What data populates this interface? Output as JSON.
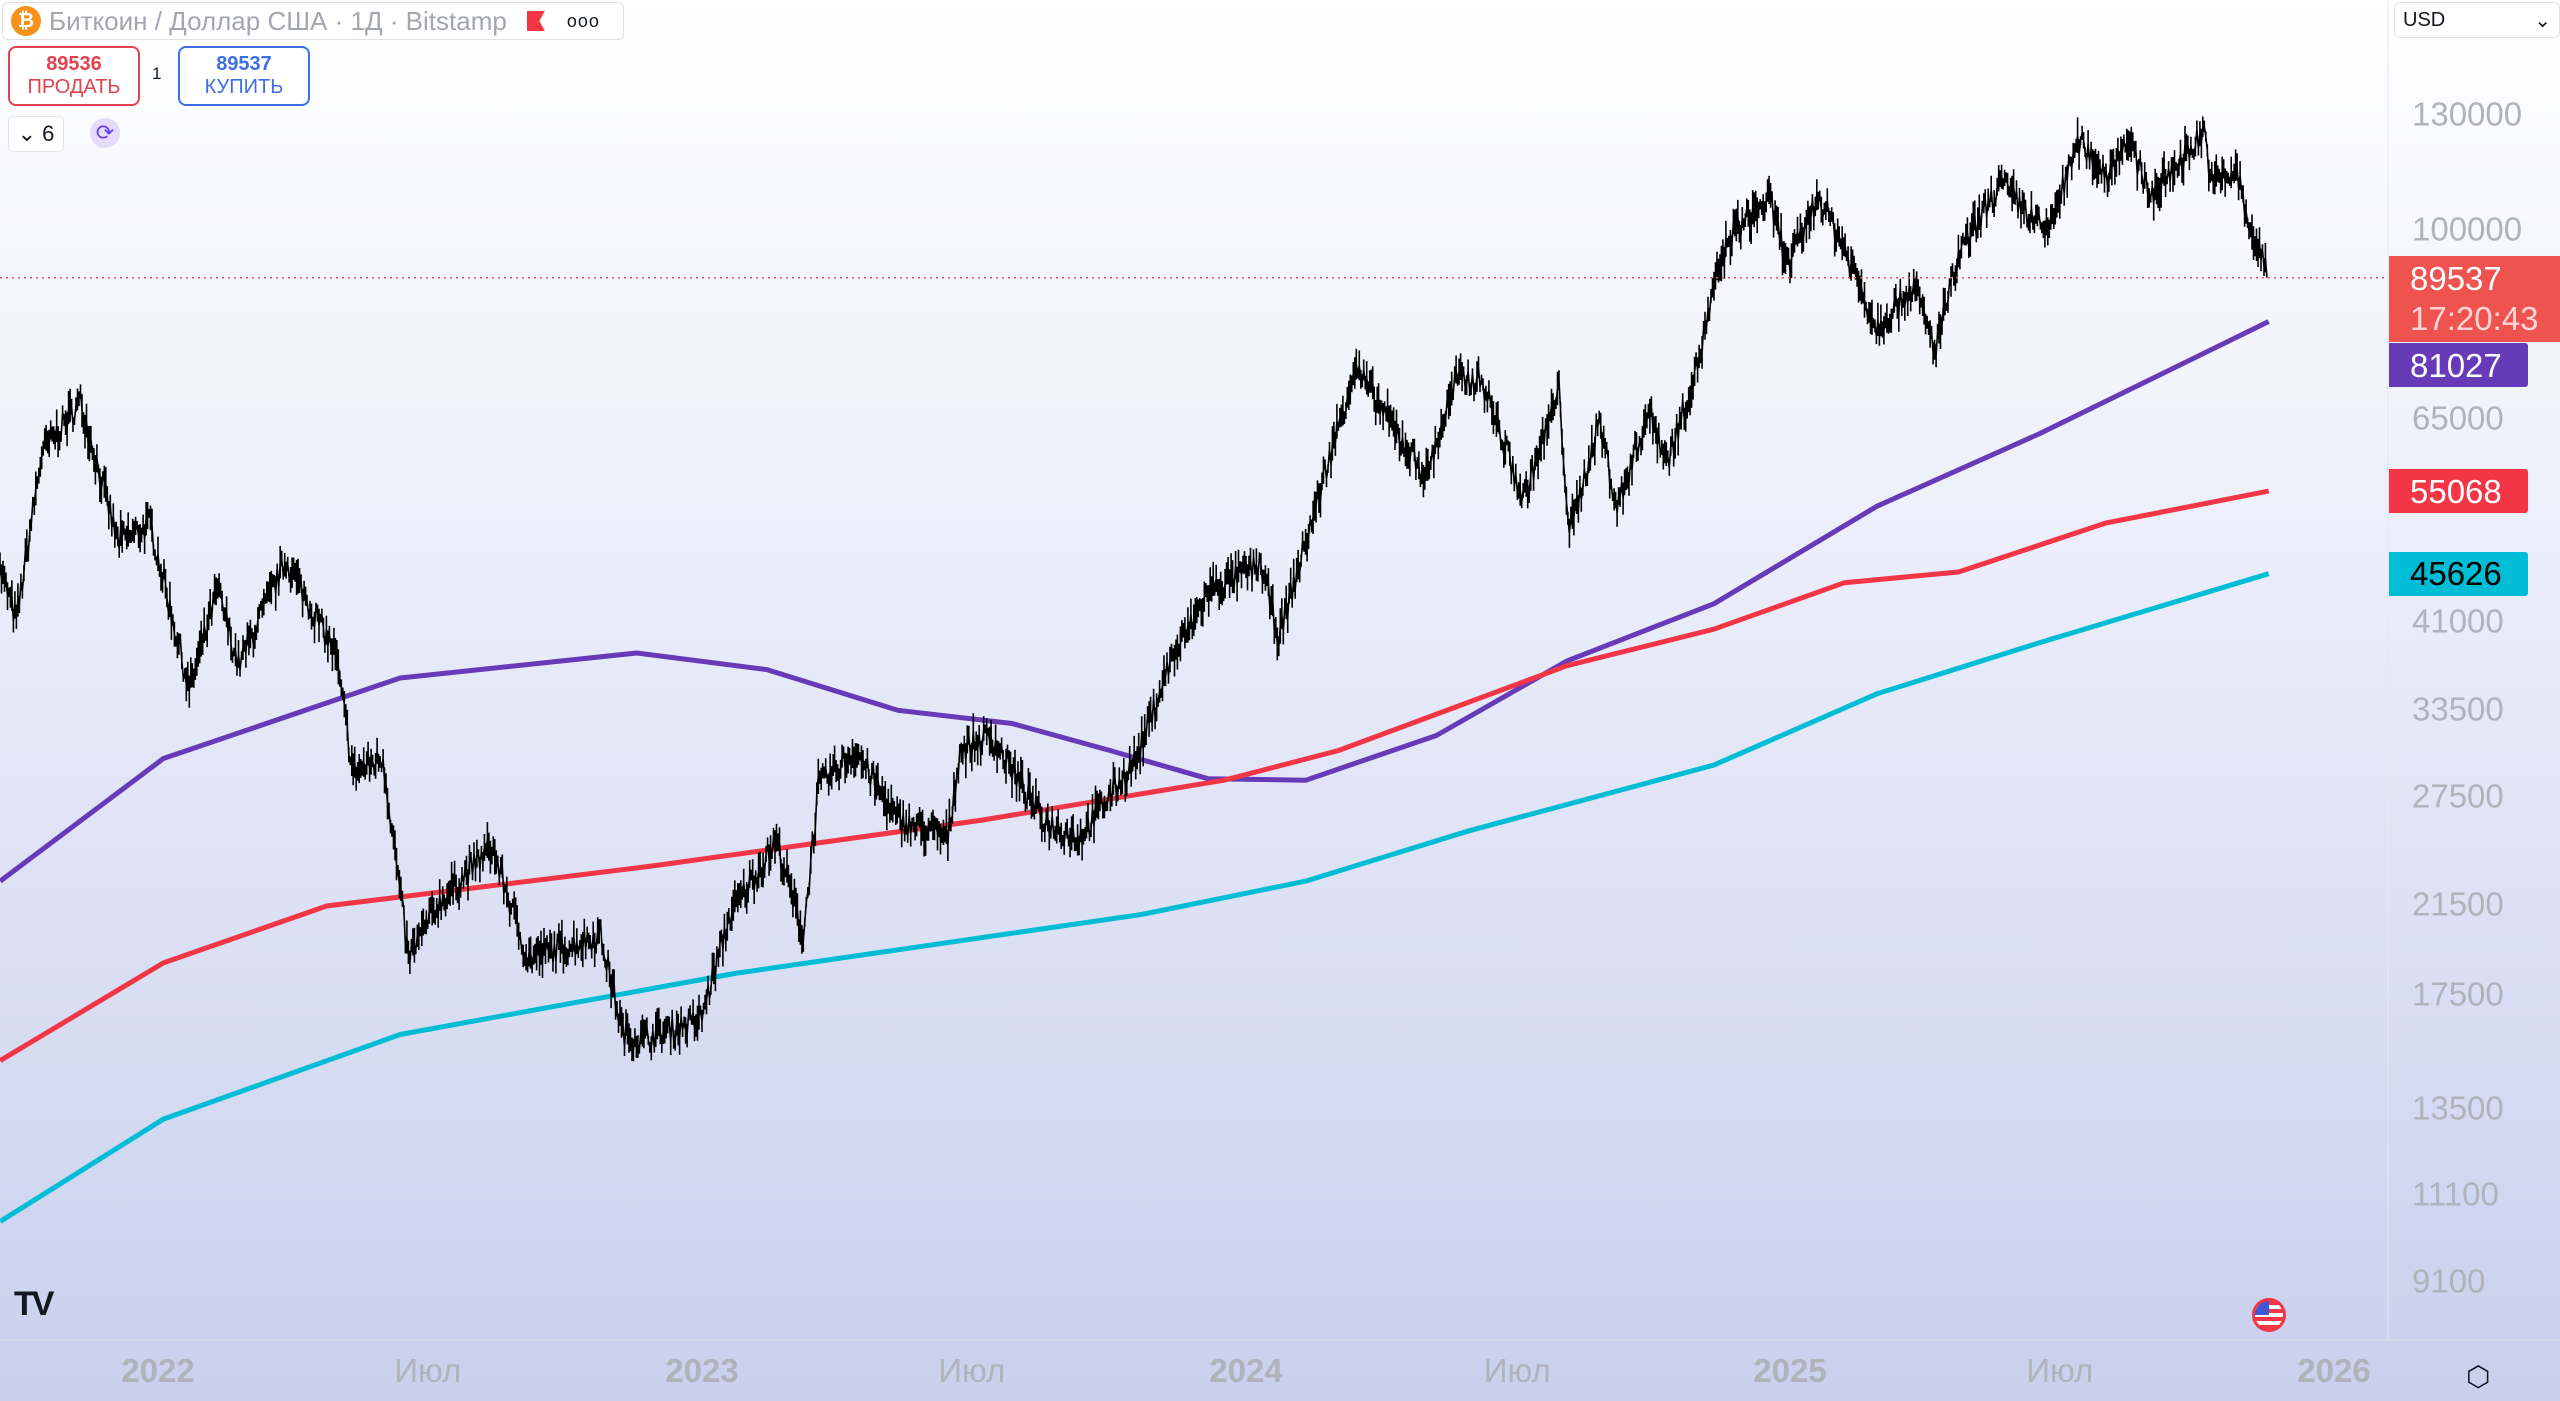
{
  "header": {
    "title": "Биткоин / Доллар США · 1Д · Bitstamp",
    "more": "ooo",
    "btc_icon": "₿"
  },
  "trade": {
    "sell_price": "89536",
    "sell_label": "ПРОДАТЬ",
    "spread": "1",
    "buy_price": "89537",
    "buy_label": "КУПИТЬ"
  },
  "indicators": {
    "count": "6",
    "collapse_icon": "⌄",
    "sync_icon": "⟳"
  },
  "currency": {
    "value": "USD",
    "chevron": "⌄"
  },
  "logo": "TV",
  "settings_icon": "⬡",
  "colors": {
    "purple": "#673ab7",
    "red": "#f23645",
    "cyan": "#00bcd4",
    "price": "#000000",
    "current": "#ef5350"
  },
  "chart_data": {
    "type": "line",
    "title": "Биткоин / Доллар США · 1Д · Bitstamp",
    "yscale": "log",
    "y_ticks": [
      "130000",
      "100000",
      "65000",
      "41000",
      "33500",
      "27500",
      "21500",
      "17500",
      "13500",
      "11100",
      "9100"
    ],
    "y_tick_values": [
      130000,
      100000,
      65000,
      41000,
      33500,
      27500,
      21500,
      17500,
      13500,
      11100,
      9100
    ],
    "x_ticks": [
      {
        "label": "2022",
        "date": "2022-01-01",
        "year": true
      },
      {
        "label": "Июл",
        "date": "2022-07-01",
        "year": false
      },
      {
        "label": "2023",
        "date": "2023-01-01",
        "year": true
      },
      {
        "label": "Июл",
        "date": "2023-07-01",
        "year": false
      },
      {
        "label": "2024",
        "date": "2024-01-01",
        "year": true
      },
      {
        "label": "Июл",
        "date": "2024-07-01",
        "year": false
      },
      {
        "label": "2025",
        "date": "2025-01-01",
        "year": true
      },
      {
        "label": "Июл",
        "date": "2025-07-01",
        "year": false
      },
      {
        "label": "2026",
        "date": "2026-01-01",
        "year": true
      }
    ],
    "current": {
      "price": "89537",
      "countdown": "17:20:43"
    },
    "price": [
      [
        "2021-09-15",
        47000
      ],
      [
        "2021-09-28",
        41000
      ],
      [
        "2021-10-15",
        60000
      ],
      [
        "2021-11-10",
        67500
      ],
      [
        "2021-12-05",
        49000
      ],
      [
        "2021-12-27",
        51000
      ],
      [
        "2022-01-22",
        35000
      ],
      [
        "2022-02-10",
        44000
      ],
      [
        "2022-02-24",
        37000
      ],
      [
        "2022-03-28",
        47000
      ],
      [
        "2022-04-30",
        38000
      ],
      [
        "2022-05-12",
        29000
      ],
      [
        "2022-06-01",
        30000
      ],
      [
        "2022-06-18",
        19000
      ],
      [
        "2022-07-08",
        21500
      ],
      [
        "2022-08-13",
        24500
      ],
      [
        "2022-09-06",
        19000
      ],
      [
        "2022-10-25",
        20000
      ],
      [
        "2022-11-09",
        16000
      ],
      [
        "2022-11-21",
        15800
      ],
      [
        "2022-12-31",
        16500
      ],
      [
        "2023-01-20",
        21000
      ],
      [
        "2023-02-20",
        24800
      ],
      [
        "2023-03-10",
        20000
      ],
      [
        "2023-03-20",
        28000
      ],
      [
        "2023-04-14",
        30500
      ],
      [
        "2023-05-12",
        26000
      ],
      [
        "2023-06-15",
        25000
      ],
      [
        "2023-06-23",
        30500
      ],
      [
        "2023-07-14",
        31500
      ],
      [
        "2023-08-18",
        26000
      ],
      [
        "2023-09-11",
        25000
      ],
      [
        "2023-10-20",
        30000
      ],
      [
        "2023-11-10",
        37000
      ],
      [
        "2023-12-08",
        44000
      ],
      [
        "2024-01-11",
        46500
      ],
      [
        "2024-01-23",
        39500
      ],
      [
        "2024-02-15",
        52000
      ],
      [
        "2024-03-14",
        73000
      ],
      [
        "2024-04-17",
        61000
      ],
      [
        "2024-05-01",
        57000
      ],
      [
        "2024-05-21",
        71000
      ],
      [
        "2024-06-07",
        71000
      ],
      [
        "2024-07-05",
        54000
      ],
      [
        "2024-07-29",
        69000
      ],
      [
        "2024-08-05",
        50000
      ],
      [
        "2024-08-25",
        64500
      ],
      [
        "2024-09-06",
        53000
      ],
      [
        "2024-09-27",
        66000
      ],
      [
        "2024-10-10",
        59000
      ],
      [
        "2024-10-29",
        72500
      ],
      [
        "2024-11-13",
        91000
      ],
      [
        "2024-11-22",
        99000
      ],
      [
        "2024-12-17",
        107000
      ],
      [
        "2024-12-30",
        92000
      ],
      [
        "2025-01-20",
        108000
      ],
      [
        "2025-02-05",
        97000
      ],
      [
        "2025-02-28",
        80000
      ],
      [
        "2025-03-25",
        88000
      ],
      [
        "2025-04-08",
        76000
      ],
      [
        "2025-04-25",
        94500
      ],
      [
        "2025-05-22",
        111000
      ],
      [
        "2025-06-22",
        99000
      ],
      [
        "2025-07-14",
        122000
      ],
      [
        "2025-08-02",
        113000
      ],
      [
        "2025-08-14",
        123000
      ],
      [
        "2025-09-01",
        108000
      ],
      [
        "2025-10-06",
        125000
      ],
      [
        "2025-10-11",
        111000
      ],
      [
        "2025-10-28",
        114000
      ],
      [
        "2025-11-04",
        101000
      ],
      [
        "2025-11-14",
        94000
      ],
      [
        "2025-11-17",
        89537
      ]
    ],
    "series": [
      {
        "name": "MA purple",
        "color": "#673ab7",
        "last": "81027",
        "points": [
          [
            2021.71,
            22650
          ],
          [
            2022.01,
            29950
          ],
          [
            2022.445,
            35970
          ],
          [
            2022.88,
            38080
          ],
          [
            2023.12,
            36660
          ],
          [
            2023.36,
            33420
          ],
          [
            2023.57,
            32430
          ],
          [
            2023.75,
            30500
          ],
          [
            2023.93,
            28600
          ],
          [
            2024.11,
            28500
          ],
          [
            2024.35,
            31560
          ],
          [
            2024.59,
            37400
          ],
          [
            2024.86,
            42600
          ],
          [
            2025.16,
            53200
          ],
          [
            2025.46,
            62800
          ],
          [
            2025.88,
            81027
          ]
        ]
      },
      {
        "name": "MA red",
        "color": "#f23645",
        "last": "55068",
        "points": [
          [
            2021.71,
            15050
          ],
          [
            2022.01,
            18800
          ],
          [
            2022.31,
            21400
          ],
          [
            2022.91,
            23450
          ],
          [
            2023.51,
            26000
          ],
          [
            2023.96,
            28500
          ],
          [
            2024.17,
            30500
          ],
          [
            2024.59,
            37000
          ],
          [
            2024.86,
            40200
          ],
          [
            2025.1,
            44700
          ],
          [
            2025.31,
            45800
          ],
          [
            2025.58,
            51200
          ],
          [
            2025.88,
            55068
          ]
        ]
      },
      {
        "name": "MA cyan",
        "color": "#00bcd4",
        "last": "45626",
        "points": [
          [
            2021.71,
            10430
          ],
          [
            2022.01,
            13170
          ],
          [
            2022.445,
            15970
          ],
          [
            2023.06,
            18350
          ],
          [
            2023.81,
            21000
          ],
          [
            2024.11,
            22650
          ],
          [
            2024.41,
            25400
          ],
          [
            2024.86,
            29500
          ],
          [
            2025.16,
            34700
          ],
          [
            2025.46,
            39000
          ],
          [
            2025.88,
            45626
          ]
        ]
      }
    ]
  }
}
